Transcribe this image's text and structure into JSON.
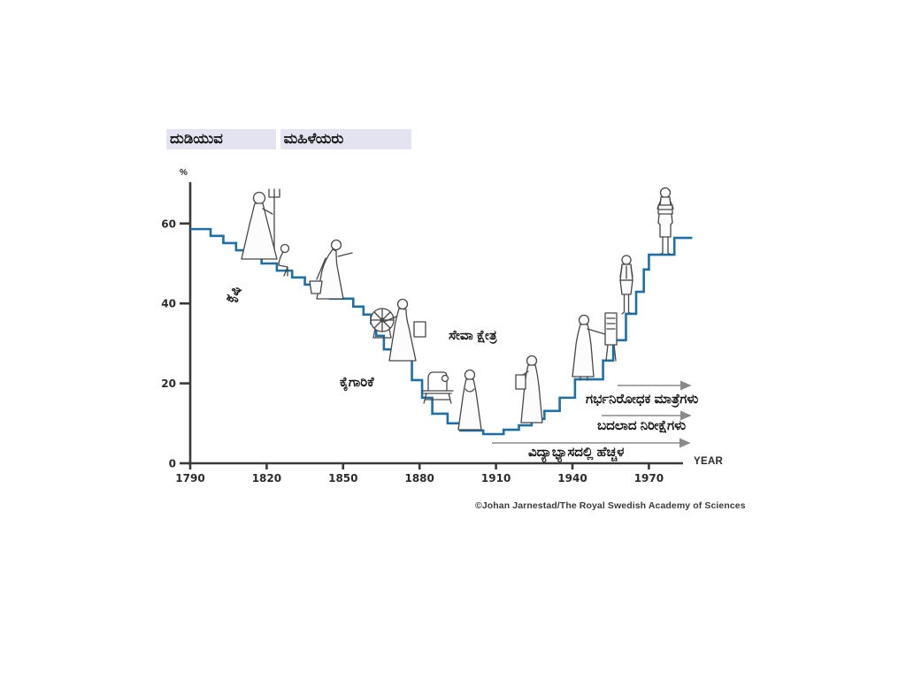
{
  "header": {
    "title_line1": "ದುಡಿಯುವ",
    "title_line2": "ಮಹಿಳೆಯರು",
    "title_highlight_color": "#e3e3f1"
  },
  "credit": "©Johan Jarnestad/The Royal Swedish Academy of Sciences",
  "chart_data": {
    "type": "line",
    "interpolation": "step-after",
    "title": "ದುಡಿಯುವ ಮಹಿಳೆಯರು",
    "xlabel": "YEAR",
    "ylabel": "%",
    "x_ticks": [
      1790,
      1820,
      1850,
      1880,
      1910,
      1940,
      1970
    ],
    "y_ticks": [
      0,
      20,
      40,
      60
    ],
    "xlim": [
      1790,
      1990
    ],
    "ylim": [
      0,
      65
    ],
    "grid": false,
    "line_color": "#1d6fa8",
    "axis_color": "#3a3a3a",
    "arrow_color": "#8a8a8a",
    "series": [
      {
        "name": "working-women-share-percent",
        "points": [
          [
            1790,
            58.6
          ],
          [
            1798,
            56.9
          ],
          [
            1803,
            55.1
          ],
          [
            1808,
            53.3
          ],
          [
            1813,
            51.5
          ],
          [
            1818,
            50.0
          ],
          [
            1824,
            48.2
          ],
          [
            1830,
            46.5
          ],
          [
            1835,
            44.7
          ],
          [
            1840,
            42.9
          ],
          [
            1845,
            41.2
          ],
          [
            1854,
            39.2
          ],
          [
            1858,
            37.2
          ],
          [
            1861,
            35.0
          ],
          [
            1863,
            31.9
          ],
          [
            1866,
            28.5
          ],
          [
            1869,
            25.9
          ],
          [
            1877,
            20.8
          ],
          [
            1881,
            16.4
          ],
          [
            1885,
            12.4
          ],
          [
            1891,
            10.0
          ],
          [
            1896,
            8.2
          ],
          [
            1905,
            7.3
          ],
          [
            1913,
            8.4
          ],
          [
            1919,
            9.5
          ],
          [
            1924,
            11.1
          ],
          [
            1929,
            13.1
          ],
          [
            1935,
            16.4
          ],
          [
            1941,
            21.0
          ],
          [
            1952,
            25.7
          ],
          [
            1956,
            30.8
          ],
          [
            1961,
            37.4
          ],
          [
            1965,
            42.9
          ],
          [
            1968,
            48.5
          ],
          [
            1970,
            52.2
          ],
          [
            1980,
            56.4
          ]
        ],
        "end_year": 1987
      }
    ],
    "annotations": {
      "sectors": [
        {
          "name": "agriculture",
          "label": "ಕೃಷಿ"
        },
        {
          "name": "industry",
          "label": "ಕೈಗಾರಿಕೆ"
        },
        {
          "name": "service-sector",
          "label": "ಸೇವಾ ಕ್ಷೇತ್ರ"
        }
      ],
      "arrows": [
        {
          "name": "contraceptive-pills",
          "label": "ಗರ್ಭನಿರೋಧಕ ಮಾತ್ರೆಗಳು"
        },
        {
          "name": "changed-expectations",
          "label": "ಬದಲಾದ ನಿರೀಕ್ಷೆಗಳು"
        },
        {
          "name": "increase-in-education",
          "label": "ವಿದ್ಯಾಭ್ಯಾಸದಲ್ಲಿ ಹೆಚ್ಚಳ"
        }
      ]
    },
    "figures": [
      "woman-with-pitchfork",
      "sitting-child",
      "woman-with-bucket",
      "woman-at-spinning-wheel",
      "sewing-machine",
      "standing-woman",
      "woman-with-portfolio",
      "teacher-at-board",
      "woman-in-suit",
      "woman-with-books"
    ]
  }
}
